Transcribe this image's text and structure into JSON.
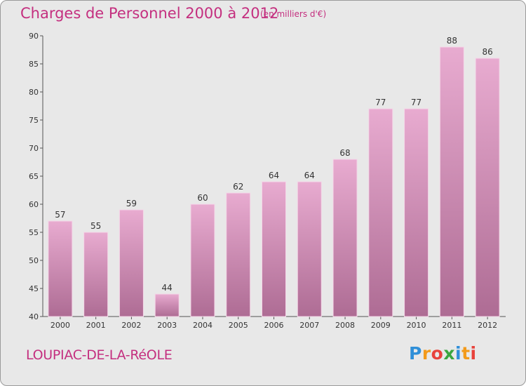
{
  "chart_data": {
    "type": "bar",
    "title": "Charges de Personnel 2000 à 2012",
    "subtitle": "(en milliers d'€)",
    "categories": [
      "2000",
      "2001",
      "2002",
      "2003",
      "2004",
      "2005",
      "2006",
      "2007",
      "2008",
      "2009",
      "2010",
      "2011",
      "2012"
    ],
    "values": [
      57,
      55,
      59,
      44,
      60,
      62,
      64,
      64,
      68,
      77,
      77,
      88,
      86
    ],
    "ylim": [
      40,
      90
    ],
    "yticks": [
      40,
      45,
      50,
      55,
      60,
      65,
      70,
      75,
      80,
      85,
      90
    ],
    "grid": false,
    "colors": {
      "bar_top": "#e8abd0",
      "bar_bottom": "#ae6c94",
      "text_accent": "#c42f7f"
    }
  },
  "footer": {
    "commune": "LOUPIAC-DE-LA-RéOLE",
    "logo_letters": [
      "P",
      "r",
      "o",
      "x",
      "i",
      "t",
      "i"
    ],
    "logo_colors": [
      "#2f8fd8",
      "#f39a1a",
      "#e8423b",
      "#3aa63f",
      "#2f8fd8",
      "#f39a1a",
      "#e8423b"
    ]
  }
}
